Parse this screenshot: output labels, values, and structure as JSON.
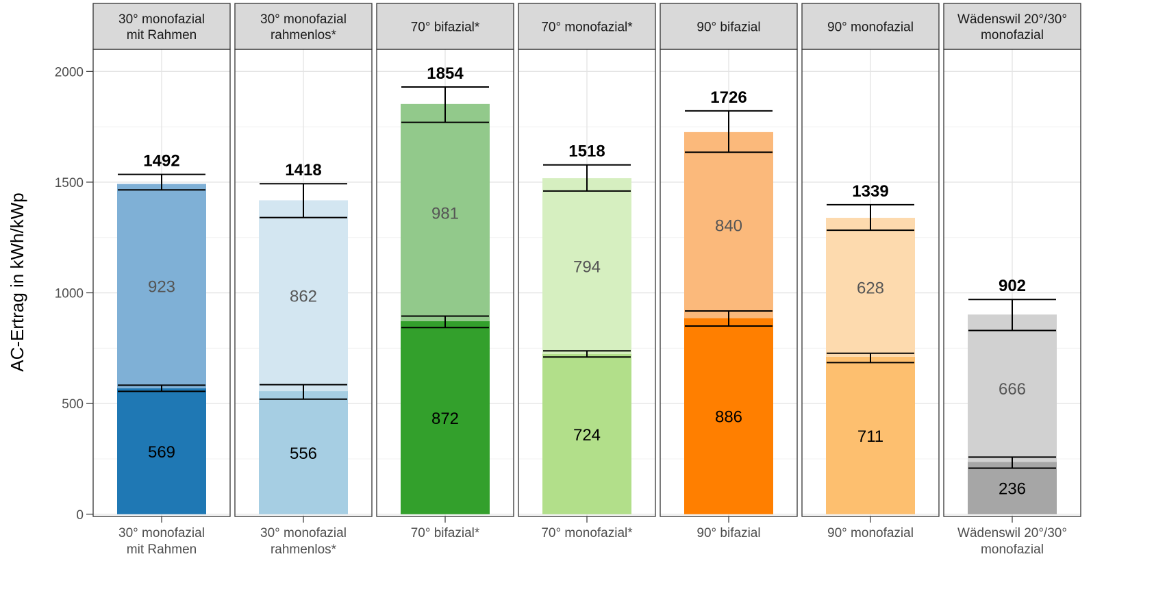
{
  "chart_data": {
    "type": "bar",
    "stacked": true,
    "facet": true,
    "ylabel": "AC-Ertrag in kWh/kWp",
    "ylim": [
      -10,
      2100
    ],
    "yticks": [
      0,
      500,
      1000,
      1500,
      2000
    ],
    "grid": true,
    "legend": "none",
    "panels": [
      {
        "strip_lines": [
          "30° monofazial",
          "mit Rahmen"
        ],
        "x_label_lines": [
          "30° monofazial",
          "mit Rahmen"
        ],
        "total": 1492,
        "total_label": "1492",
        "segments": [
          {
            "value": 569,
            "label": "569",
            "color": "#1f78b4",
            "label_color": "#000000",
            "error": [
              555,
              583
            ]
          },
          {
            "value": 923,
            "label": "923",
            "color": "#7fb0d6",
            "label_color": "#555555",
            "error": [
              1465,
              1535
            ]
          }
        ]
      },
      {
        "strip_lines": [
          "30° monofazial",
          "rahmenlos*"
        ],
        "x_label_lines": [
          "30° monofazial",
          "rahmenlos*"
        ],
        "total": 1418,
        "total_label": "1418",
        "segments": [
          {
            "value": 556,
            "label": "556",
            "color": "#a6cee3",
            "label_color": "#000000",
            "error": [
              520,
              585
            ]
          },
          {
            "value": 862,
            "label": "862",
            "color": "#d3e6f1",
            "label_color": "#555555",
            "error": [
              1340,
              1493
            ]
          }
        ]
      },
      {
        "strip_lines": [
          "70° bifazial*"
        ],
        "x_label_lines": [
          "70° bifazial*"
        ],
        "total": 1854,
        "total_label": "1854",
        "segments": [
          {
            "value": 872,
            "label": "872",
            "color": "#33a02c",
            "label_color": "#000000",
            "error": [
              843,
              895
            ]
          },
          {
            "value": 981,
            "label": "981",
            "color": "#92c98b",
            "label_color": "#555555",
            "error": [
              1770,
              1930
            ]
          }
        ]
      },
      {
        "strip_lines": [
          "70° monofazial*"
        ],
        "x_label_lines": [
          "70° monofazial*"
        ],
        "total": 1518,
        "total_label": "1518",
        "segments": [
          {
            "value": 724,
            "label": "724",
            "color": "#b2df8a",
            "label_color": "#000000",
            "error": [
              710,
              738
            ]
          },
          {
            "value": 794,
            "label": "794",
            "color": "#d6efc0",
            "label_color": "#555555",
            "error": [
              1460,
              1578
            ]
          }
        ]
      },
      {
        "strip_lines": [
          "90° bifazial"
        ],
        "x_label_lines": [
          "90° bifazial"
        ],
        "total": 1726,
        "total_label": "1726",
        "segments": [
          {
            "value": 886,
            "label": "886",
            "color": "#ff7f00",
            "label_color": "#000000",
            "error": [
              850,
              918
            ]
          },
          {
            "value": 840,
            "label": "840",
            "color": "#fbb97b",
            "label_color": "#555555",
            "error": [
              1635,
              1822
            ]
          }
        ]
      },
      {
        "strip_lines": [
          "90° monofazial"
        ],
        "x_label_lines": [
          "90° monofazial"
        ],
        "total": 1339,
        "total_label": "1339",
        "segments": [
          {
            "value": 711,
            "label": "711",
            "color": "#fdbf6f",
            "label_color": "#000000",
            "error": [
              685,
              727
            ]
          },
          {
            "value": 628,
            "label": "628",
            "color": "#fddaae",
            "label_color": "#555555",
            "error": [
              1283,
              1398
            ]
          }
        ]
      },
      {
        "strip_lines": [
          "Wädenswil 20°/30°",
          "monofazial"
        ],
        "x_label_lines": [
          "Wädenswil 20°/30°",
          "monofazial"
        ],
        "total": 902,
        "total_label": "902",
        "segments": [
          {
            "value": 236,
            "label": "236",
            "color": "#a6a6a6",
            "label_color": "#000000",
            "error": [
              208,
              258
            ]
          },
          {
            "value": 666,
            "label": "666",
            "color": "#d1d1d1",
            "label_color": "#555555",
            "error": [
              830,
              970
            ]
          }
        ]
      }
    ]
  }
}
